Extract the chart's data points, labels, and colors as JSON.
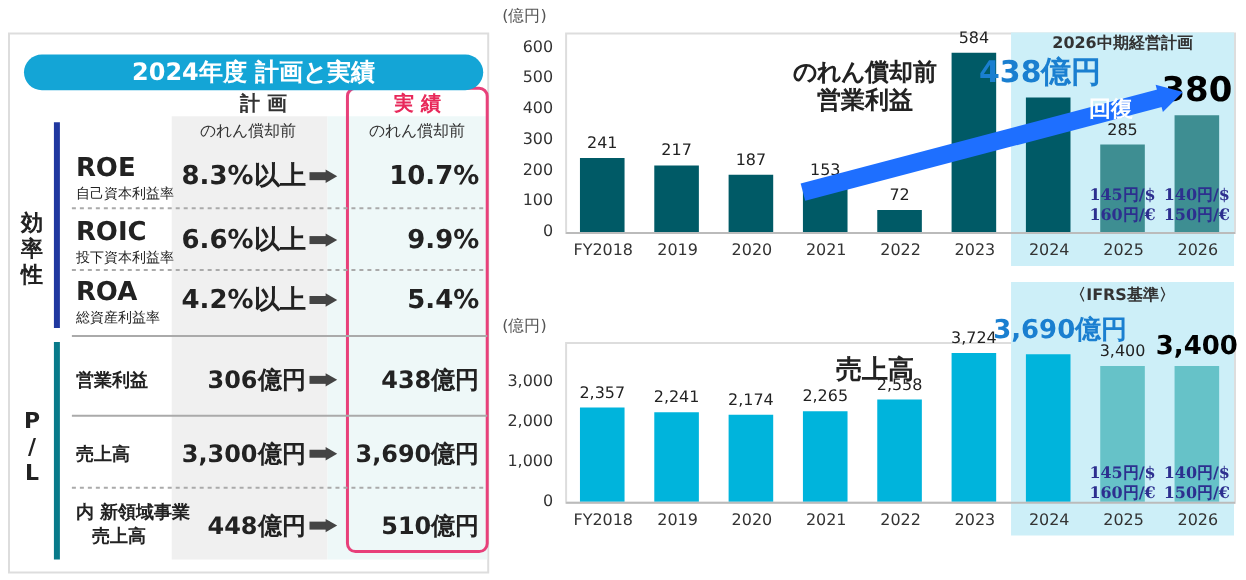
{
  "chart_data": [
    {
      "type": "other",
      "title": "2024年度 計画と実績",
      "annotations": [
        "計 画",
        "実 績",
        "のれん償却前",
        "のれん償却前",
        "効率性",
        "P/L",
        "ROE",
        "自己資本利益率",
        "8.3%以上",
        "10.7%",
        "ROIC",
        "投下資本利益率",
        "6.6%以上",
        "9.9%",
        "ROA",
        "総資産利益率",
        "4.2%以上",
        "5.4%",
        "営業利益",
        "306億円",
        "438億円",
        "売上高",
        "3,300億円",
        "3,690億円",
        "内 新領域事業",
        "売上高",
        "448億円",
        "510億円"
      ]
    },
    {
      "type": "bar",
      "title": "のれん償却前営業利益",
      "ylabel": "(億円)",
      "categories": [
        "FY2018",
        "2019",
        "2020",
        "2021",
        "2022",
        "2023",
        "2024",
        "2025",
        "2026"
      ],
      "values": [
        241,
        217,
        187,
        153,
        72,
        584,
        438,
        285,
        380
      ],
      "colors": [
        "#005a66",
        "#005a66",
        "#005a66",
        "#005a66",
        "#005a66",
        "#005a66",
        "#005a66",
        "#3e8e92",
        "#3e8e92"
      ],
      "value_labels": [
        "241",
        "217",
        "187",
        "153",
        "72",
        "584",
        "438億円",
        "285",
        "380"
      ],
      "ylim": [
        0,
        650
      ],
      "yticks": [
        0,
        100,
        200,
        300,
        400,
        500,
        600
      ],
      "bands": [
        {
          "axis": "x",
          "from": "2024",
          "to": "2026",
          "label": "2026中期経営計画",
          "color": "#cdeff8"
        }
      ],
      "annotations": [
        "回復",
        "145円/$\n160円/€",
        "140円/$\n150円/€"
      ]
    },
    {
      "type": "bar",
      "title": "売上高",
      "ylabel": "(億円)",
      "categories": [
        "FY2018",
        "2019",
        "2020",
        "2021",
        "2022",
        "2023",
        "2024",
        "2025",
        "2026"
      ],
      "values": [
        2357,
        2241,
        2174,
        2265,
        2558,
        3724,
        3690,
        3400,
        3400
      ],
      "colors": [
        "#00b4dc",
        "#00b4dc",
        "#00b4dc",
        "#00b4dc",
        "#00b4dc",
        "#00b4dc",
        "#00b4dc",
        "#66c2c8",
        "#66c2c8"
      ],
      "value_labels": [
        "2,357",
        "2,241",
        "2,174",
        "2,265",
        "2,558",
        "3,724",
        "3,690億円",
        "3,400",
        "3,400"
      ],
      "ylim": [
        0,
        4000
      ],
      "yticks": [
        0,
        {
          "value": 1000,
          "label": "1,000"
        },
        {
          "value": 2000,
          "label": "2,000"
        },
        {
          "value": 3000,
          "label": "3,000"
        }
      ],
      "bands": [
        {
          "axis": "x",
          "from": "2024",
          "to": "2026",
          "label": "〈IFRS基準〉",
          "color": "#cdeff8"
        }
      ],
      "annotations": [
        "145円/$\n160円/€",
        "140円/$\n150円/€"
      ]
    }
  ]
}
